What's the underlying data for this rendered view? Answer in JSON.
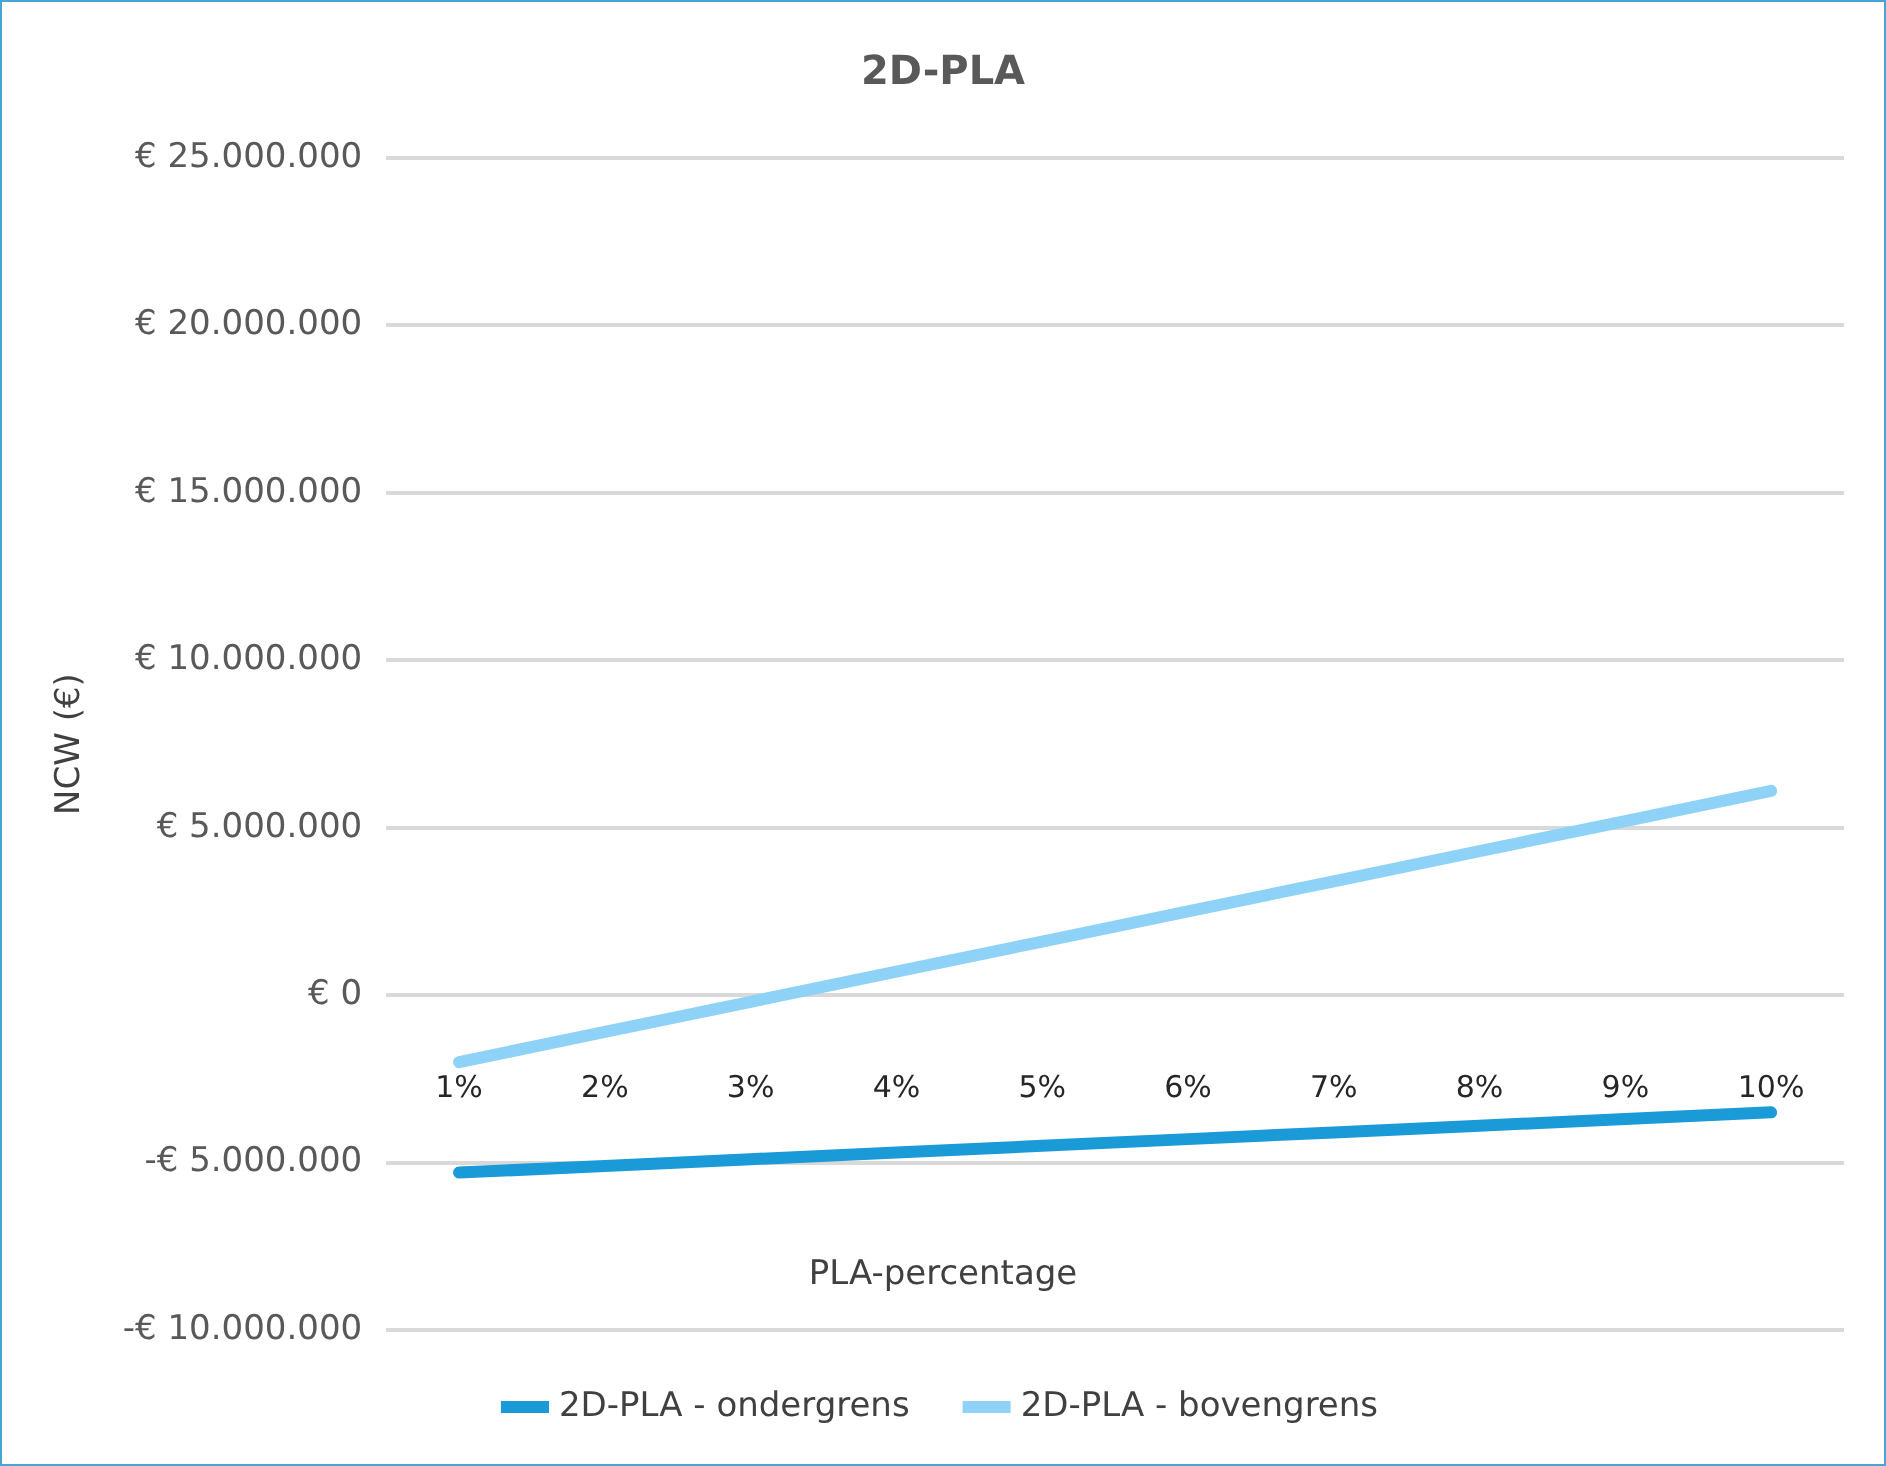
{
  "chart_data": {
    "type": "line",
    "title": "2D-PLA",
    "xlabel": "PLA-percentage",
    "ylabel": "NCW (€)",
    "categories": [
      "1%",
      "2%",
      "3%",
      "4%",
      "5%",
      "6%",
      "7%",
      "8%",
      "9%",
      "10%"
    ],
    "series": [
      {
        "name": "2D-PLA - ondergrens",
        "color": "#1a9ad6",
        "values": [
          -5300000,
          -5100000,
          -4900000,
          -4700000,
          -4500000,
          -4300000,
          -4100000,
          -3900000,
          -3700000,
          -3500000
        ]
      },
      {
        "name": "2D-PLA - bovengrens",
        "color": "#8ed2f7",
        "values": [
          -2000000,
          -1100000,
          -200000,
          700000,
          1600000,
          2500000,
          3400000,
          4300000,
          5200000,
          6100000
        ]
      }
    ],
    "ylim": [
      -10000000,
      25000000
    ],
    "yticks": [
      {
        "value": -10000000,
        "label": "-€ 10.000.000"
      },
      {
        "value": -5000000,
        "label": "-€ 5.000.000"
      },
      {
        "value": 0,
        "label": "€ 0"
      },
      {
        "value": 5000000,
        "label": "€ 5.000.000"
      },
      {
        "value": 10000000,
        "label": "€ 10.000.000"
      },
      {
        "value": 15000000,
        "label": "€ 15.000.000"
      },
      {
        "value": 20000000,
        "label": "€ 20.000.000"
      },
      {
        "value": 25000000,
        "label": "€ 25.000.000"
      }
    ],
    "grid": "y",
    "legend": "bottom",
    "marker": "none",
    "line_style": "solid"
  }
}
